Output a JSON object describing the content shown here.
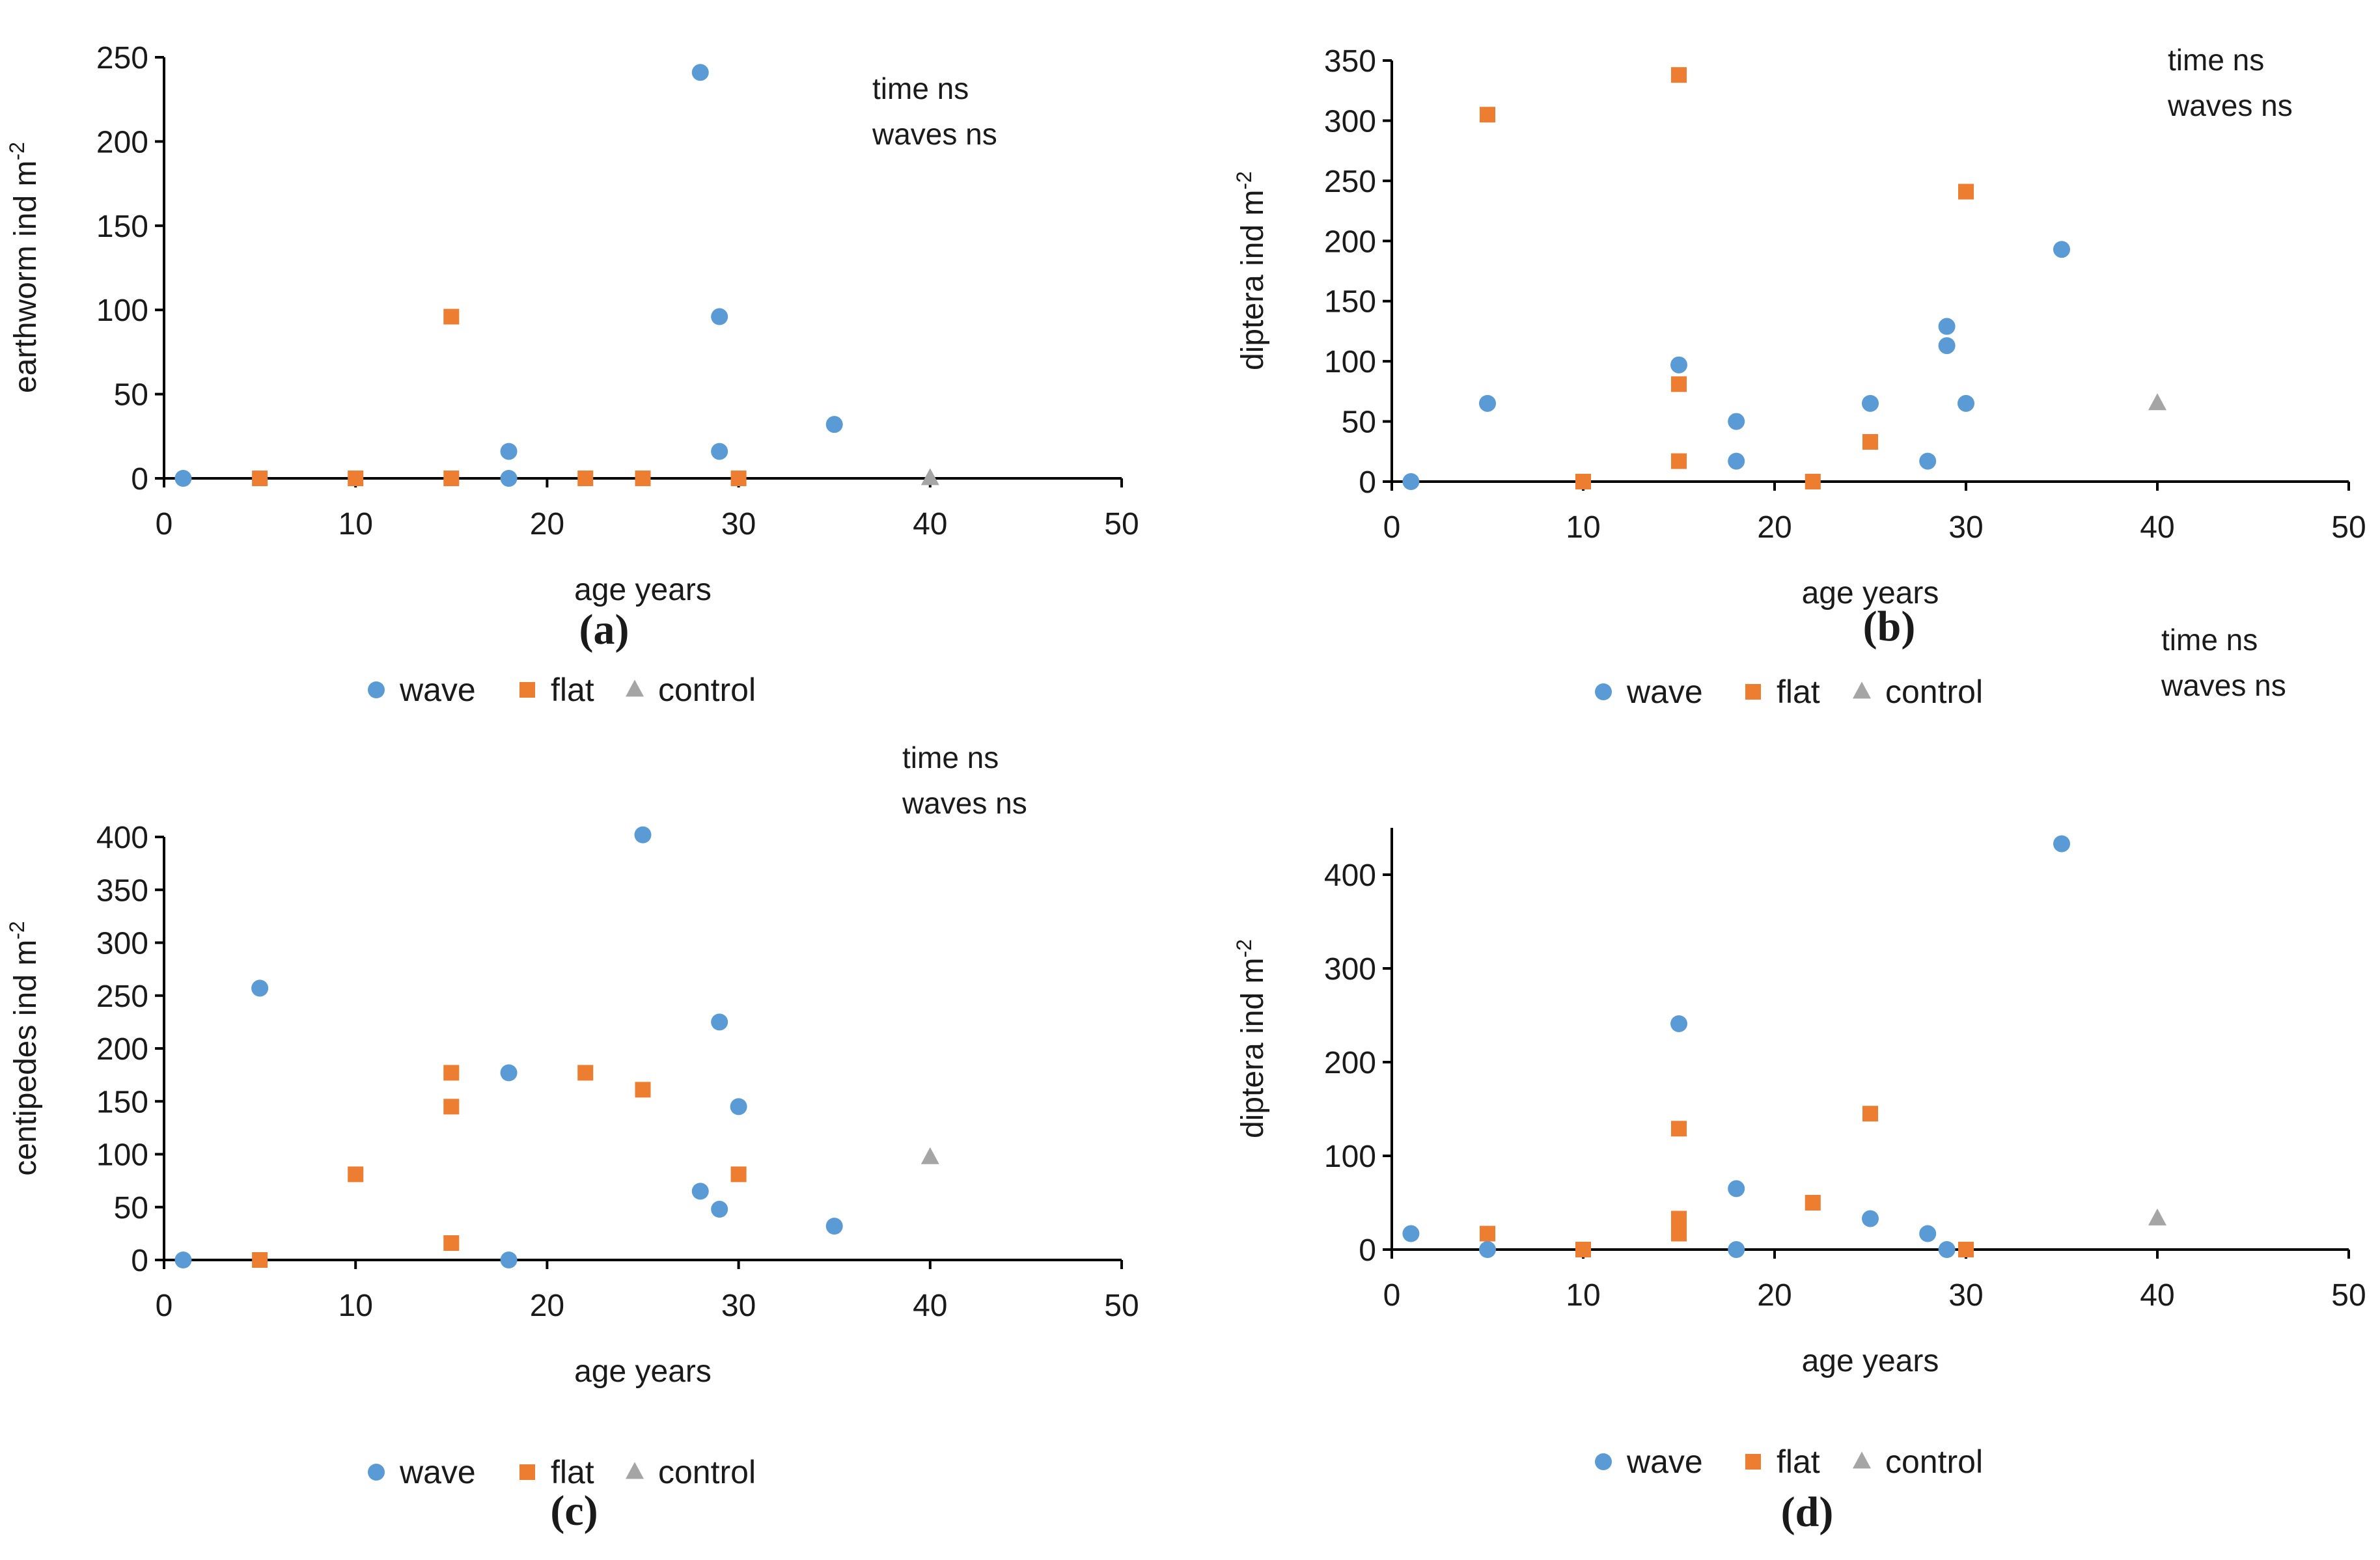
{
  "colors": {
    "wave": "#5b9bd5",
    "flat": "#ed7d31",
    "control": "#a5a5a5",
    "axis": "#000000"
  },
  "legend": {
    "wave": "wave",
    "flat": "flat",
    "control": "control"
  },
  "chart_data": [
    {
      "id": "a",
      "type": "scatter",
      "label": "(a)",
      "xlabel": "age years",
      "ylabel": "earthworm ind m",
      "ylabel_sup": "-2",
      "xlim": [
        0,
        50
      ],
      "ylim": [
        0,
        250
      ],
      "xticks": [
        0,
        10,
        20,
        30,
        40,
        50
      ],
      "yticks": [
        0,
        50,
        100,
        150,
        200,
        250
      ],
      "annotations": [
        "time ns",
        "waves ns"
      ],
      "series": [
        {
          "name": "wave",
          "marker": "circle",
          "points": [
            [
              1,
              0
            ],
            [
              18,
              16
            ],
            [
              18,
              0
            ],
            [
              28,
              241
            ],
            [
              29,
              96
            ],
            [
              29,
              16
            ],
            [
              35,
              32
            ]
          ]
        },
        {
          "name": "flat",
          "marker": "square",
          "points": [
            [
              5,
              0
            ],
            [
              10,
              0
            ],
            [
              15,
              96
            ],
            [
              15,
              0
            ],
            [
              22,
              0
            ],
            [
              25,
              0
            ],
            [
              30,
              0
            ]
          ]
        },
        {
          "name": "control",
          "marker": "triangle",
          "points": [
            [
              40,
              0
            ]
          ]
        }
      ]
    },
    {
      "id": "b",
      "type": "scatter",
      "label": "(b)",
      "xlabel": "age years",
      "ylabel": "diptera ind m",
      "ylabel_sup": "-2",
      "xlim": [
        0,
        50
      ],
      "ylim": [
        0,
        350
      ],
      "xticks": [
        0,
        10,
        20,
        30,
        40,
        50
      ],
      "yticks": [
        0,
        50,
        100,
        150,
        200,
        250,
        300,
        350
      ],
      "annotations": [
        "time ns",
        "waves ns"
      ],
      "series": [
        {
          "name": "wave",
          "marker": "circle",
          "points": [
            [
              1,
              0
            ],
            [
              5,
              65
            ],
            [
              15,
              97
            ],
            [
              18,
              50
            ],
            [
              18,
              17
            ],
            [
              25,
              65
            ],
            [
              28,
              17
            ],
            [
              29,
              129
            ],
            [
              29,
              113
            ],
            [
              30,
              65
            ],
            [
              35,
              193
            ]
          ]
        },
        {
          "name": "flat",
          "marker": "square",
          "points": [
            [
              5,
              305
            ],
            [
              10,
              0
            ],
            [
              15,
              338
            ],
            [
              15,
              81
            ],
            [
              15,
              17
            ],
            [
              22,
              0
            ],
            [
              25,
              33
            ],
            [
              30,
              241
            ]
          ]
        },
        {
          "name": "control",
          "marker": "triangle",
          "points": [
            [
              40,
              65
            ]
          ]
        }
      ]
    },
    {
      "id": "c",
      "type": "scatter",
      "label": "(c)",
      "xlabel": "age years",
      "ylabel": "centipedes ind m",
      "ylabel_sup": "-2",
      "xlim": [
        0,
        50
      ],
      "ylim": [
        0,
        400
      ],
      "xticks": [
        0,
        10,
        20,
        30,
        40,
        50
      ],
      "yticks": [
        0,
        50,
        100,
        150,
        200,
        250,
        300,
        350,
        400
      ],
      "annotations": [
        "time ns",
        "waves ns"
      ],
      "series": [
        {
          "name": "wave",
          "marker": "circle",
          "points": [
            [
              1,
              0
            ],
            [
              5,
              257
            ],
            [
              18,
              177
            ],
            [
              18,
              0
            ],
            [
              25,
              402
            ],
            [
              28,
              65
            ],
            [
              29,
              225
            ],
            [
              29,
              48
            ],
            [
              30,
              145
            ],
            [
              35,
              32
            ]
          ]
        },
        {
          "name": "flat",
          "marker": "square",
          "points": [
            [
              5,
              0
            ],
            [
              10,
              81
            ],
            [
              15,
              177
            ],
            [
              15,
              145
            ],
            [
              15,
              16
            ],
            [
              22,
              177
            ],
            [
              25,
              161
            ],
            [
              30,
              81
            ]
          ]
        },
        {
          "name": "control",
          "marker": "triangle",
          "points": [
            [
              40,
              97
            ]
          ]
        }
      ]
    },
    {
      "id": "d",
      "type": "scatter",
      "label": "(d)",
      "xlabel": "age years",
      "ylabel": "diptera ind m",
      "ylabel_sup": "-2",
      "xlim": [
        0,
        50
      ],
      "ylim": [
        0,
        450
      ],
      "xticks": [
        0,
        10,
        20,
        30,
        40,
        50
      ],
      "yticks": [
        0,
        100,
        200,
        300,
        400
      ],
      "annotations": [
        "time ns",
        "waves ns"
      ],
      "series": [
        {
          "name": "wave",
          "marker": "circle",
          "points": [
            [
              1,
              17
            ],
            [
              5,
              0
            ],
            [
              15,
              241
            ],
            [
              18,
              65
            ],
            [
              18,
              0
            ],
            [
              25,
              33
            ],
            [
              28,
              17
            ],
            [
              29,
              0
            ],
            [
              35,
              433
            ]
          ]
        },
        {
          "name": "flat",
          "marker": "square",
          "points": [
            [
              5,
              17
            ],
            [
              10,
              0
            ],
            [
              15,
              129
            ],
            [
              15,
              33
            ],
            [
              15,
              17
            ],
            [
              22,
              50
            ],
            [
              25,
              145
            ],
            [
              30,
              0
            ]
          ]
        },
        {
          "name": "control",
          "marker": "triangle",
          "points": [
            [
              40,
              33
            ]
          ]
        }
      ]
    }
  ]
}
